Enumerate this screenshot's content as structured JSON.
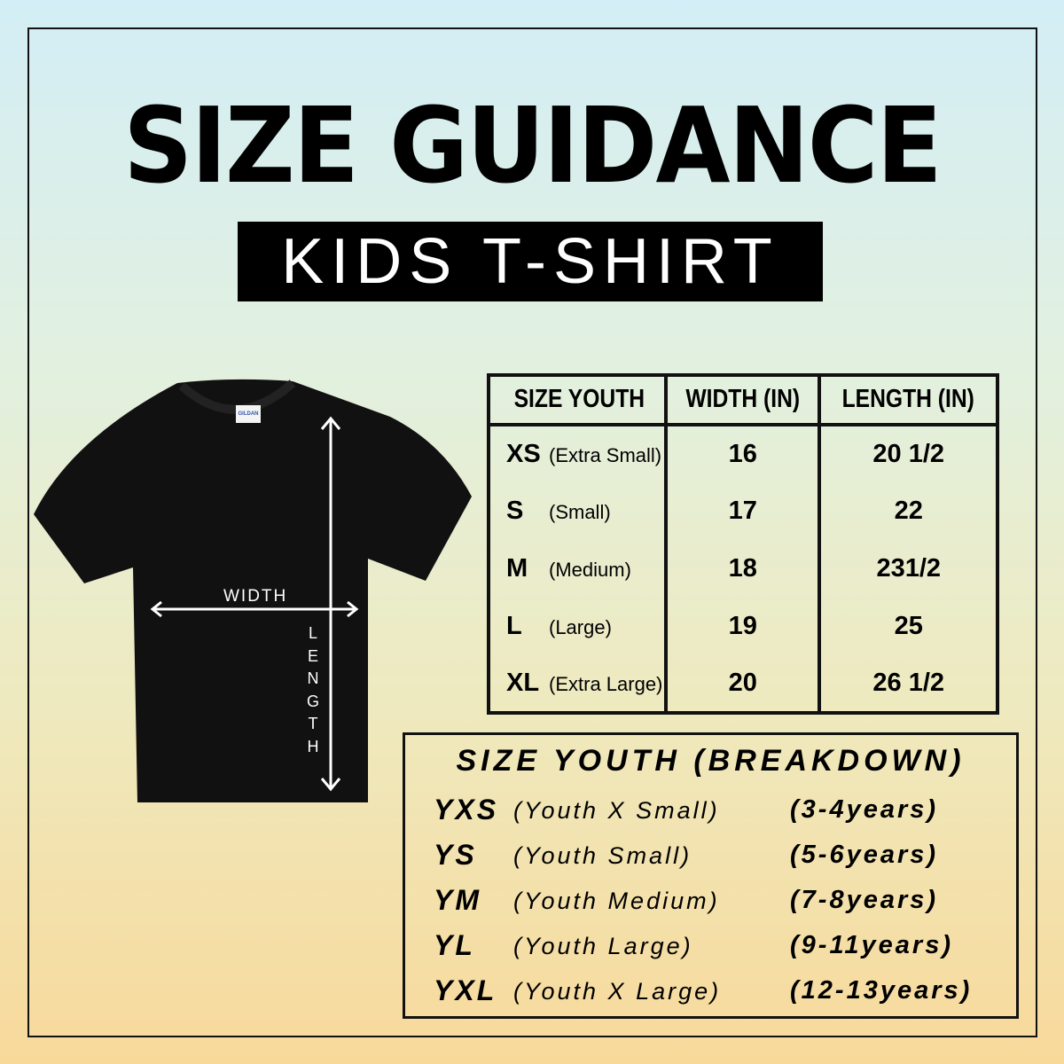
{
  "header": {
    "title": "SIZE GUIDANCE",
    "subtitle": "KIDS T-SHIRT"
  },
  "shirt": {
    "brand_label": "GILDAN",
    "color": "#111111",
    "width_label": "WIDTH",
    "length_label": "LENGTH"
  },
  "size_table": {
    "headers": [
      "SIZE YOUTH",
      "WIDTH (IN)",
      "LENGTH (IN)"
    ],
    "rows": [
      {
        "code": "XS",
        "desc": "(Extra Small)",
        "width": "16",
        "length": "20 1/2"
      },
      {
        "code": "S",
        "desc": "(Small)",
        "width": "17",
        "length": "22"
      },
      {
        "code": "M",
        "desc": "(Medium)",
        "width": "18",
        "length": "231/2"
      },
      {
        "code": "L",
        "desc": "(Large)",
        "width": "19",
        "length": "25"
      },
      {
        "code": "XL",
        "desc": "(Extra Large)",
        "width": "20",
        "length": "26 1/2"
      }
    ]
  },
  "breakdown": {
    "title": "SIZE YOUTH (BREAKDOWN)",
    "rows": [
      {
        "code": "YXS",
        "name": "(Youth X Small)",
        "age": "(3-4years)"
      },
      {
        "code": "YS",
        "name": "(Youth  Small)",
        "age": "(5-6years)"
      },
      {
        "code": "YM",
        "name": "(Youth  Medium)",
        "age": "(7-8years)"
      },
      {
        "code": "YL",
        "name": "(Youth Large)",
        "age": "(9-11years)"
      },
      {
        "code": "YXL",
        "name": "(Youth X Large)",
        "age": "(12-13years)"
      }
    ]
  }
}
